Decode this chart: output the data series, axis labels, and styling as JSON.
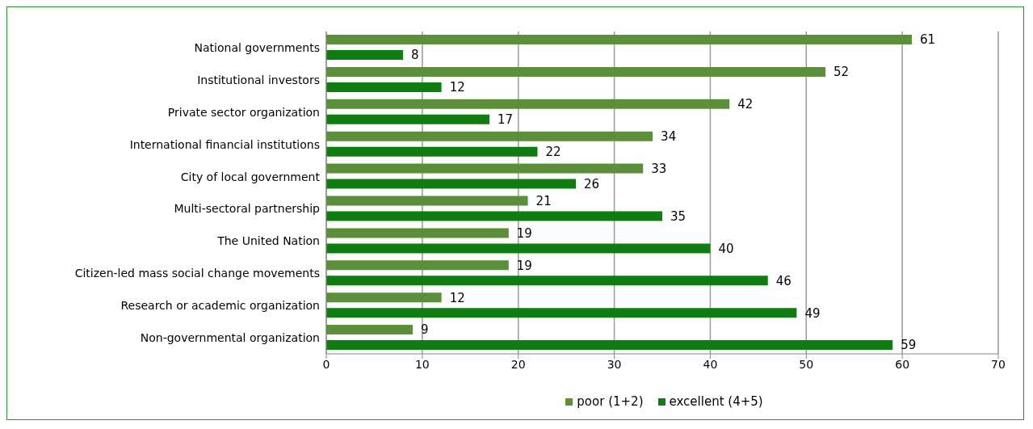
{
  "chart_data": {
    "type": "bar",
    "orientation": "horizontal",
    "categories": [
      "National governments",
      "Institutional investors",
      "Private sector organization",
      "International financial institutions",
      "City of local government",
      "Multi-sectoral partnership",
      "The United Nation",
      "Citizen-led mass social change movements",
      "Research or academic organization",
      "Non-governmental organization"
    ],
    "series": [
      {
        "name": "poor (1+2)",
        "color": "#5b8f3a",
        "values": [
          61,
          52,
          42,
          34,
          33,
          21,
          19,
          19,
          12,
          9
        ]
      },
      {
        "name": "excellent (4+5)",
        "color": "#0f7d12",
        "values": [
          8,
          12,
          17,
          22,
          26,
          35,
          40,
          46,
          49,
          59
        ]
      }
    ],
    "xlim": [
      0,
      70
    ],
    "xticks": [
      0,
      10,
      20,
      30,
      40,
      50,
      60,
      70
    ],
    "grid": "x",
    "legend": "bottom",
    "data_labels": true
  }
}
